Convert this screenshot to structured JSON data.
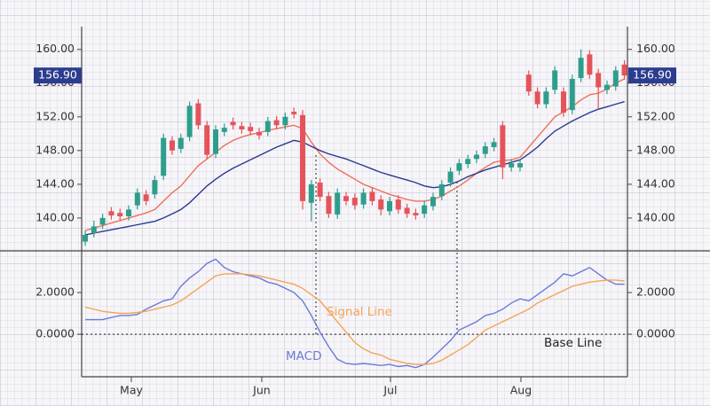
{
  "chart_data": [
    {
      "type": "candlestick",
      "open": [
        137.2,
        138.2,
        139.2,
        140.8,
        140.6,
        140.2,
        141.5,
        142.8,
        142.8,
        145.0,
        149.2,
        148.2,
        149.6,
        153.6,
        151.0,
        147.6,
        150.2,
        151.4,
        150.9,
        150.8,
        150.2,
        150.2,
        151.6,
        151.0,
        152.6,
        152.2,
        141.8,
        144.2,
        142.6,
        140.4,
        142.6,
        142.4,
        141.6,
        143.1,
        142.2,
        140.8,
        142.2,
        141.2,
        140.6,
        140.5,
        141.4,
        142.6,
        144.2,
        145.6,
        146.4,
        147.0,
        147.6,
        148.4,
        151.0,
        146.0,
        146.0,
        157.0,
        155.0,
        153.5,
        155.2,
        155.0,
        152.8,
        156.6,
        159.4,
        157.2,
        155.2,
        155.6,
        158.2
      ],
      "high": [
        138.5,
        139.7,
        140.5,
        141.3,
        141.1,
        141.5,
        143.5,
        143.3,
        145.0,
        150.0,
        149.7,
        150.0,
        153.8,
        154.1,
        151.5,
        151.0,
        151.2,
        151.9,
        151.4,
        151.3,
        150.7,
        152.0,
        152.1,
        152.5,
        153.1,
        152.8,
        144.5,
        144.7,
        143.1,
        143.5,
        143.1,
        142.9,
        143.5,
        143.6,
        142.7,
        142.5,
        142.7,
        141.7,
        141.1,
        142.0,
        143.0,
        144.5,
        146.0,
        147.0,
        147.5,
        148.0,
        149.0,
        149.5,
        151.5,
        147.0,
        147.0,
        157.5,
        155.5,
        155.5,
        158.0,
        155.5,
        157.0,
        160.0,
        159.9,
        157.7,
        156.3,
        158.0,
        158.7
      ],
      "low": [
        136.7,
        137.7,
        138.7,
        139.8,
        139.7,
        139.7,
        141.0,
        141.5,
        142.3,
        144.5,
        147.5,
        147.7,
        149.1,
        150.5,
        147.0,
        147.1,
        149.7,
        150.5,
        150.0,
        149.8,
        149.3,
        149.7,
        150.5,
        150.5,
        151.8,
        141.0,
        139.6,
        142.0,
        140.0,
        139.9,
        141.5,
        141.0,
        141.1,
        141.5,
        140.3,
        140.3,
        140.5,
        140.0,
        139.8,
        140.0,
        140.9,
        142.1,
        143.7,
        145.1,
        145.9,
        146.5,
        147.1,
        147.9,
        144.6,
        145.5,
        145.5,
        154.5,
        153.0,
        153.0,
        154.7,
        152.0,
        152.3,
        156.1,
        156.5,
        153.0,
        154.7,
        155.1,
        156.4
      ],
      "close": [
        138.0,
        139.0,
        140.0,
        140.3,
        140.2,
        141.0,
        143.0,
        142.0,
        144.5,
        149.5,
        148.0,
        149.5,
        153.3,
        151.0,
        147.5,
        150.5,
        150.7,
        151.0,
        150.5,
        150.3,
        149.8,
        151.5,
        151.0,
        152.0,
        152.3,
        142.0,
        144.0,
        142.5,
        140.5,
        143.0,
        142.0,
        141.5,
        143.0,
        142.0,
        141.0,
        142.0,
        141.0,
        140.5,
        140.3,
        141.5,
        142.5,
        144.0,
        145.5,
        146.5,
        147.0,
        147.5,
        148.5,
        149.0,
        146.0,
        146.5,
        146.5,
        155.0,
        153.5,
        155.0,
        157.5,
        152.5,
        156.5,
        159.0,
        157.0,
        155.5,
        155.8,
        157.5,
        156.9
      ],
      "up_color": "#2e9e8c",
      "down_color": "#e5535a",
      "series": [
        {
          "color": "#ee7058",
          "values": [
            138.5,
            138.8,
            139.1,
            139.4,
            139.7,
            140.0,
            140.3,
            140.6,
            141.0,
            142.0,
            143.0,
            143.8,
            145.0,
            146.2,
            147.0,
            147.8,
            148.6,
            149.2,
            149.6,
            149.9,
            150.1,
            150.4,
            150.6,
            150.8,
            151.0,
            150.6,
            149.0,
            147.6,
            146.6,
            145.8,
            145.2,
            144.6,
            144.0,
            143.6,
            143.2,
            142.8,
            142.5,
            142.2,
            142.0,
            142.0,
            142.2,
            142.6,
            143.2,
            143.8,
            144.5,
            145.3,
            146.0,
            146.6,
            146.8,
            146.9,
            147.2,
            148.4,
            149.6,
            150.8,
            152.0,
            152.6,
            153.2,
            154.0,
            154.6,
            154.8,
            155.3,
            156.0,
            156.5
          ]
        },
        {
          "color": "#2b3a8f",
          "values": [
            138.0,
            138.2,
            138.4,
            138.6,
            138.8,
            139.0,
            139.2,
            139.4,
            139.6,
            140.0,
            140.5,
            141.0,
            141.8,
            142.8,
            143.8,
            144.6,
            145.3,
            145.9,
            146.4,
            146.9,
            147.4,
            147.9,
            148.4,
            148.8,
            149.2,
            149.0,
            148.5,
            148.0,
            147.6,
            147.3,
            147.0,
            146.6,
            146.2,
            145.8,
            145.4,
            145.1,
            144.8,
            144.5,
            144.2,
            143.8,
            143.6,
            143.7,
            144.0,
            144.4,
            144.9,
            145.3,
            145.7,
            146.0,
            146.3,
            146.6,
            146.9,
            147.6,
            148.4,
            149.4,
            150.3,
            150.9,
            151.5,
            152.0,
            152.5,
            152.9,
            153.2,
            153.5,
            153.8
          ]
        }
      ],
      "ylim": [
        136.1,
        162.7
      ],
      "yticks": [
        {
          "value": 140,
          "label": "140.00"
        },
        {
          "value": 144,
          "label": "144.00"
        },
        {
          "value": 148,
          "label": "148.00"
        },
        {
          "value": 152,
          "label": "152.00"
        },
        {
          "value": 156,
          "label": "156.00"
        },
        {
          "value": 160,
          "label": "160.00"
        }
      ],
      "price_tag": {
        "value": 156.9,
        "label": "156.90",
        "color": "#2c3d8f"
      }
    },
    {
      "type": "line",
      "series": [
        {
          "name": "MACD",
          "color": "#6b7bd6",
          "values": [
            0.7,
            0.7,
            0.7,
            0.8,
            0.9,
            0.9,
            0.95,
            1.2,
            1.4,
            1.6,
            1.7,
            2.3,
            2.7,
            3.0,
            3.4,
            3.6,
            3.2,
            3.0,
            2.9,
            2.8,
            2.7,
            2.5,
            2.4,
            2.2,
            2.0,
            1.6,
            0.9,
            0.1,
            -0.6,
            -1.2,
            -1.4,
            -1.45,
            -1.4,
            -1.45,
            -1.5,
            -1.45,
            -1.55,
            -1.5,
            -1.6,
            -1.45,
            -1.1,
            -0.7,
            -0.3,
            0.2,
            0.4,
            0.6,
            0.9,
            1.0,
            1.2,
            1.5,
            1.7,
            1.6,
            1.9,
            2.2,
            2.5,
            2.9,
            2.8,
            3.0,
            3.2,
            2.9,
            2.6,
            2.4,
            2.4
          ]
        },
        {
          "name": "Signal Line",
          "color": "#f5a456",
          "values": [
            1.3,
            1.2,
            1.1,
            1.05,
            1.0,
            1.0,
            1.05,
            1.1,
            1.2,
            1.3,
            1.4,
            1.6,
            1.9,
            2.2,
            2.5,
            2.8,
            2.9,
            2.9,
            2.9,
            2.85,
            2.8,
            2.7,
            2.6,
            2.5,
            2.4,
            2.2,
            1.9,
            1.6,
            1.1,
            0.6,
            0.1,
            -0.4,
            -0.7,
            -0.9,
            -1.0,
            -1.2,
            -1.3,
            -1.4,
            -1.45,
            -1.45,
            -1.4,
            -1.25,
            -1.0,
            -0.75,
            -0.5,
            -0.15,
            0.2,
            0.4,
            0.6,
            0.8,
            1.0,
            1.2,
            1.5,
            1.7,
            1.9,
            2.1,
            2.3,
            2.4,
            2.5,
            2.55,
            2.6,
            2.6,
            2.55
          ]
        }
      ],
      "ylim": [
        -2.04,
        4.0
      ],
      "yticks": [
        {
          "value": 0,
          "label": "0.0000"
        },
        {
          "value": 2,
          "label": "2.0000"
        }
      ],
      "baseline": {
        "value": 0,
        "label": "Base Line"
      },
      "xlim": [
        -0.41,
        62.35
      ],
      "xticks": [
        {
          "value": 5.3,
          "label": "May"
        },
        {
          "value": 20.3,
          "label": "Jun"
        },
        {
          "value": 35.1,
          "label": "Jul"
        },
        {
          "value": 50.1,
          "label": "Aug"
        }
      ]
    }
  ]
}
